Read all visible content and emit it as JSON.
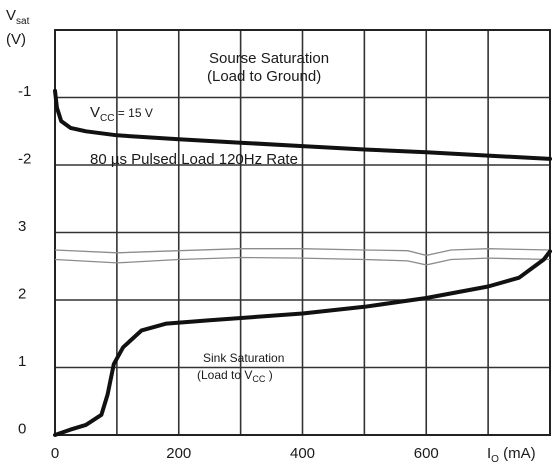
{
  "chart_data": {
    "type": "line",
    "ylabel": {
      "main": "V",
      "sub": "sat",
      "unit": "(V)"
    },
    "xlabel": {
      "main": "I",
      "sub": "O",
      "unit": " (mA)"
    },
    "xlim": [
      0,
      800
    ],
    "grid": true,
    "x_ticks": [
      {
        "value": 0,
        "label": "0"
      },
      {
        "value": 200,
        "label": "200"
      },
      {
        "value": 400,
        "label": "400"
      },
      {
        "value": 600,
        "label": "600"
      }
    ],
    "y_ticks": [
      {
        "label": "-1"
      },
      {
        "label": "-2"
      },
      {
        "label": "3"
      },
      {
        "label": "2"
      },
      {
        "label": "1"
      },
      {
        "label": "0"
      }
    ],
    "annotations": {
      "source_title": "Sourse Saturation",
      "source_sub": "(Load to Ground)",
      "vcc_label": {
        "main": "V",
        "sub": "CC",
        "rest": " = 15 V"
      },
      "pulsed_label": "80 µs Pulsed Load 120Hz Rate",
      "sink_title": "Sink Saturation",
      "sink_sub": {
        "main": "(Load to V",
        "sub": "CC",
        "rest": " )"
      }
    },
    "series": [
      {
        "color": "#111111",
        "points": [
          [
            0,
            -1.0
          ],
          [
            3,
            -1.25
          ],
          [
            10,
            -1.45
          ],
          [
            25,
            -1.55
          ],
          [
            50,
            -1.6
          ],
          [
            100,
            -1.66
          ],
          [
            200,
            -1.72
          ],
          [
            300,
            -1.77
          ],
          [
            400,
            -1.82
          ],
          [
            500,
            -1.87
          ],
          [
            600,
            -1.91
          ],
          [
            700,
            -1.96
          ],
          [
            800,
            -2.01
          ]
        ]
      },
      {
        "color": "#111111",
        "points": [
          [
            0,
            0.0
          ],
          [
            25,
            0.08
          ],
          [
            50,
            0.15
          ],
          [
            75,
            0.3
          ],
          [
            85,
            0.6
          ],
          [
            95,
            1.05
          ],
          [
            110,
            1.3
          ],
          [
            140,
            1.55
          ],
          [
            180,
            1.65
          ],
          [
            250,
            1.7
          ],
          [
            400,
            1.8
          ],
          [
            500,
            1.9
          ],
          [
            600,
            2.03
          ],
          [
            700,
            2.2
          ],
          [
            750,
            2.33
          ],
          [
            790,
            2.6
          ],
          [
            800,
            2.72
          ]
        ]
      }
    ],
    "rate_band": {
      "color": "#8c8c8c",
      "upper": [
        [
          0,
          2.6
        ],
        [
          100,
          2.55
        ],
        [
          200,
          2.6
        ],
        [
          300,
          2.63
        ],
        [
          400,
          2.62
        ],
        [
          500,
          2.6
        ],
        [
          570,
          2.58
        ],
        [
          600,
          2.52
        ],
        [
          640,
          2.6
        ],
        [
          700,
          2.62
        ],
        [
          800,
          2.6
        ]
      ],
      "lower": [
        [
          0,
          2.74
        ],
        [
          100,
          2.7
        ],
        [
          200,
          2.73
        ],
        [
          300,
          2.76
        ],
        [
          400,
          2.76
        ],
        [
          500,
          2.74
        ],
        [
          570,
          2.73
        ],
        [
          600,
          2.66
        ],
        [
          640,
          2.74
        ],
        [
          700,
          2.76
        ],
        [
          800,
          2.74
        ]
      ]
    }
  }
}
